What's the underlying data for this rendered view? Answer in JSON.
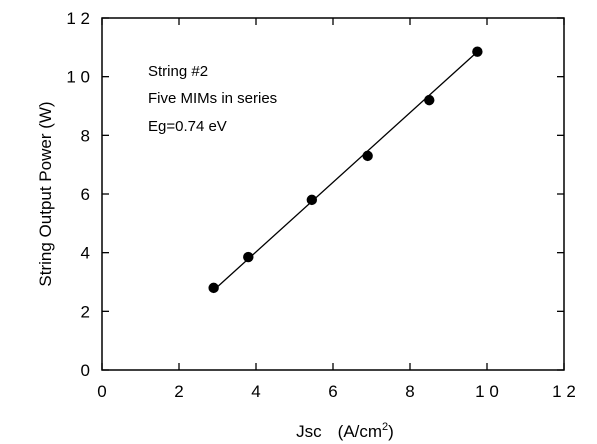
{
  "chart_data": {
    "type": "scatter",
    "title": "",
    "xlabel": "Jsc",
    "xlabel_unit": "(A/cm",
    "xlabel_sup": "2",
    "xlabel_close": ")",
    "ylabel": "String Output Power (W)",
    "xlim": [
      0,
      12
    ],
    "ylim": [
      0,
      12
    ],
    "x_ticks": [
      {
        "value": 0,
        "label": "0"
      },
      {
        "value": 2,
        "label": "2"
      },
      {
        "value": 4,
        "label": "4"
      },
      {
        "value": 6,
        "label": "6"
      },
      {
        "value": 8,
        "label": "8"
      },
      {
        "value": 10,
        "label": "1 0"
      },
      {
        "value": 12,
        "label": "1 2"
      }
    ],
    "y_ticks": [
      {
        "value": 0,
        "label": "0"
      },
      {
        "value": 2,
        "label": "2"
      },
      {
        "value": 4,
        "label": "4"
      },
      {
        "value": 6,
        "label": "6"
      },
      {
        "value": 8,
        "label": "8"
      },
      {
        "value": 10,
        "label": "1 0"
      },
      {
        "value": 12,
        "label": "1 2"
      }
    ],
    "grid": false,
    "annotations": [
      "String  #2",
      "Five MIMs in series",
      "Eg=0.74  eV"
    ],
    "series": [
      {
        "points": [
          {
            "x": 2.9,
            "y": 2.8
          },
          {
            "x": 3.8,
            "y": 3.85
          },
          {
            "x": 5.45,
            "y": 5.8
          },
          {
            "x": 6.9,
            "y": 7.3
          },
          {
            "x": 8.5,
            "y": 9.2
          },
          {
            "x": 9.75,
            "y": 10.85
          }
        ],
        "fit_line": {
          "x": [
            2.9,
            9.75
          ],
          "y": [
            2.72,
            10.85
          ]
        }
      }
    ],
    "colors": {
      "marker": "#000000",
      "line": "#000000",
      "axes": "#000000"
    }
  }
}
